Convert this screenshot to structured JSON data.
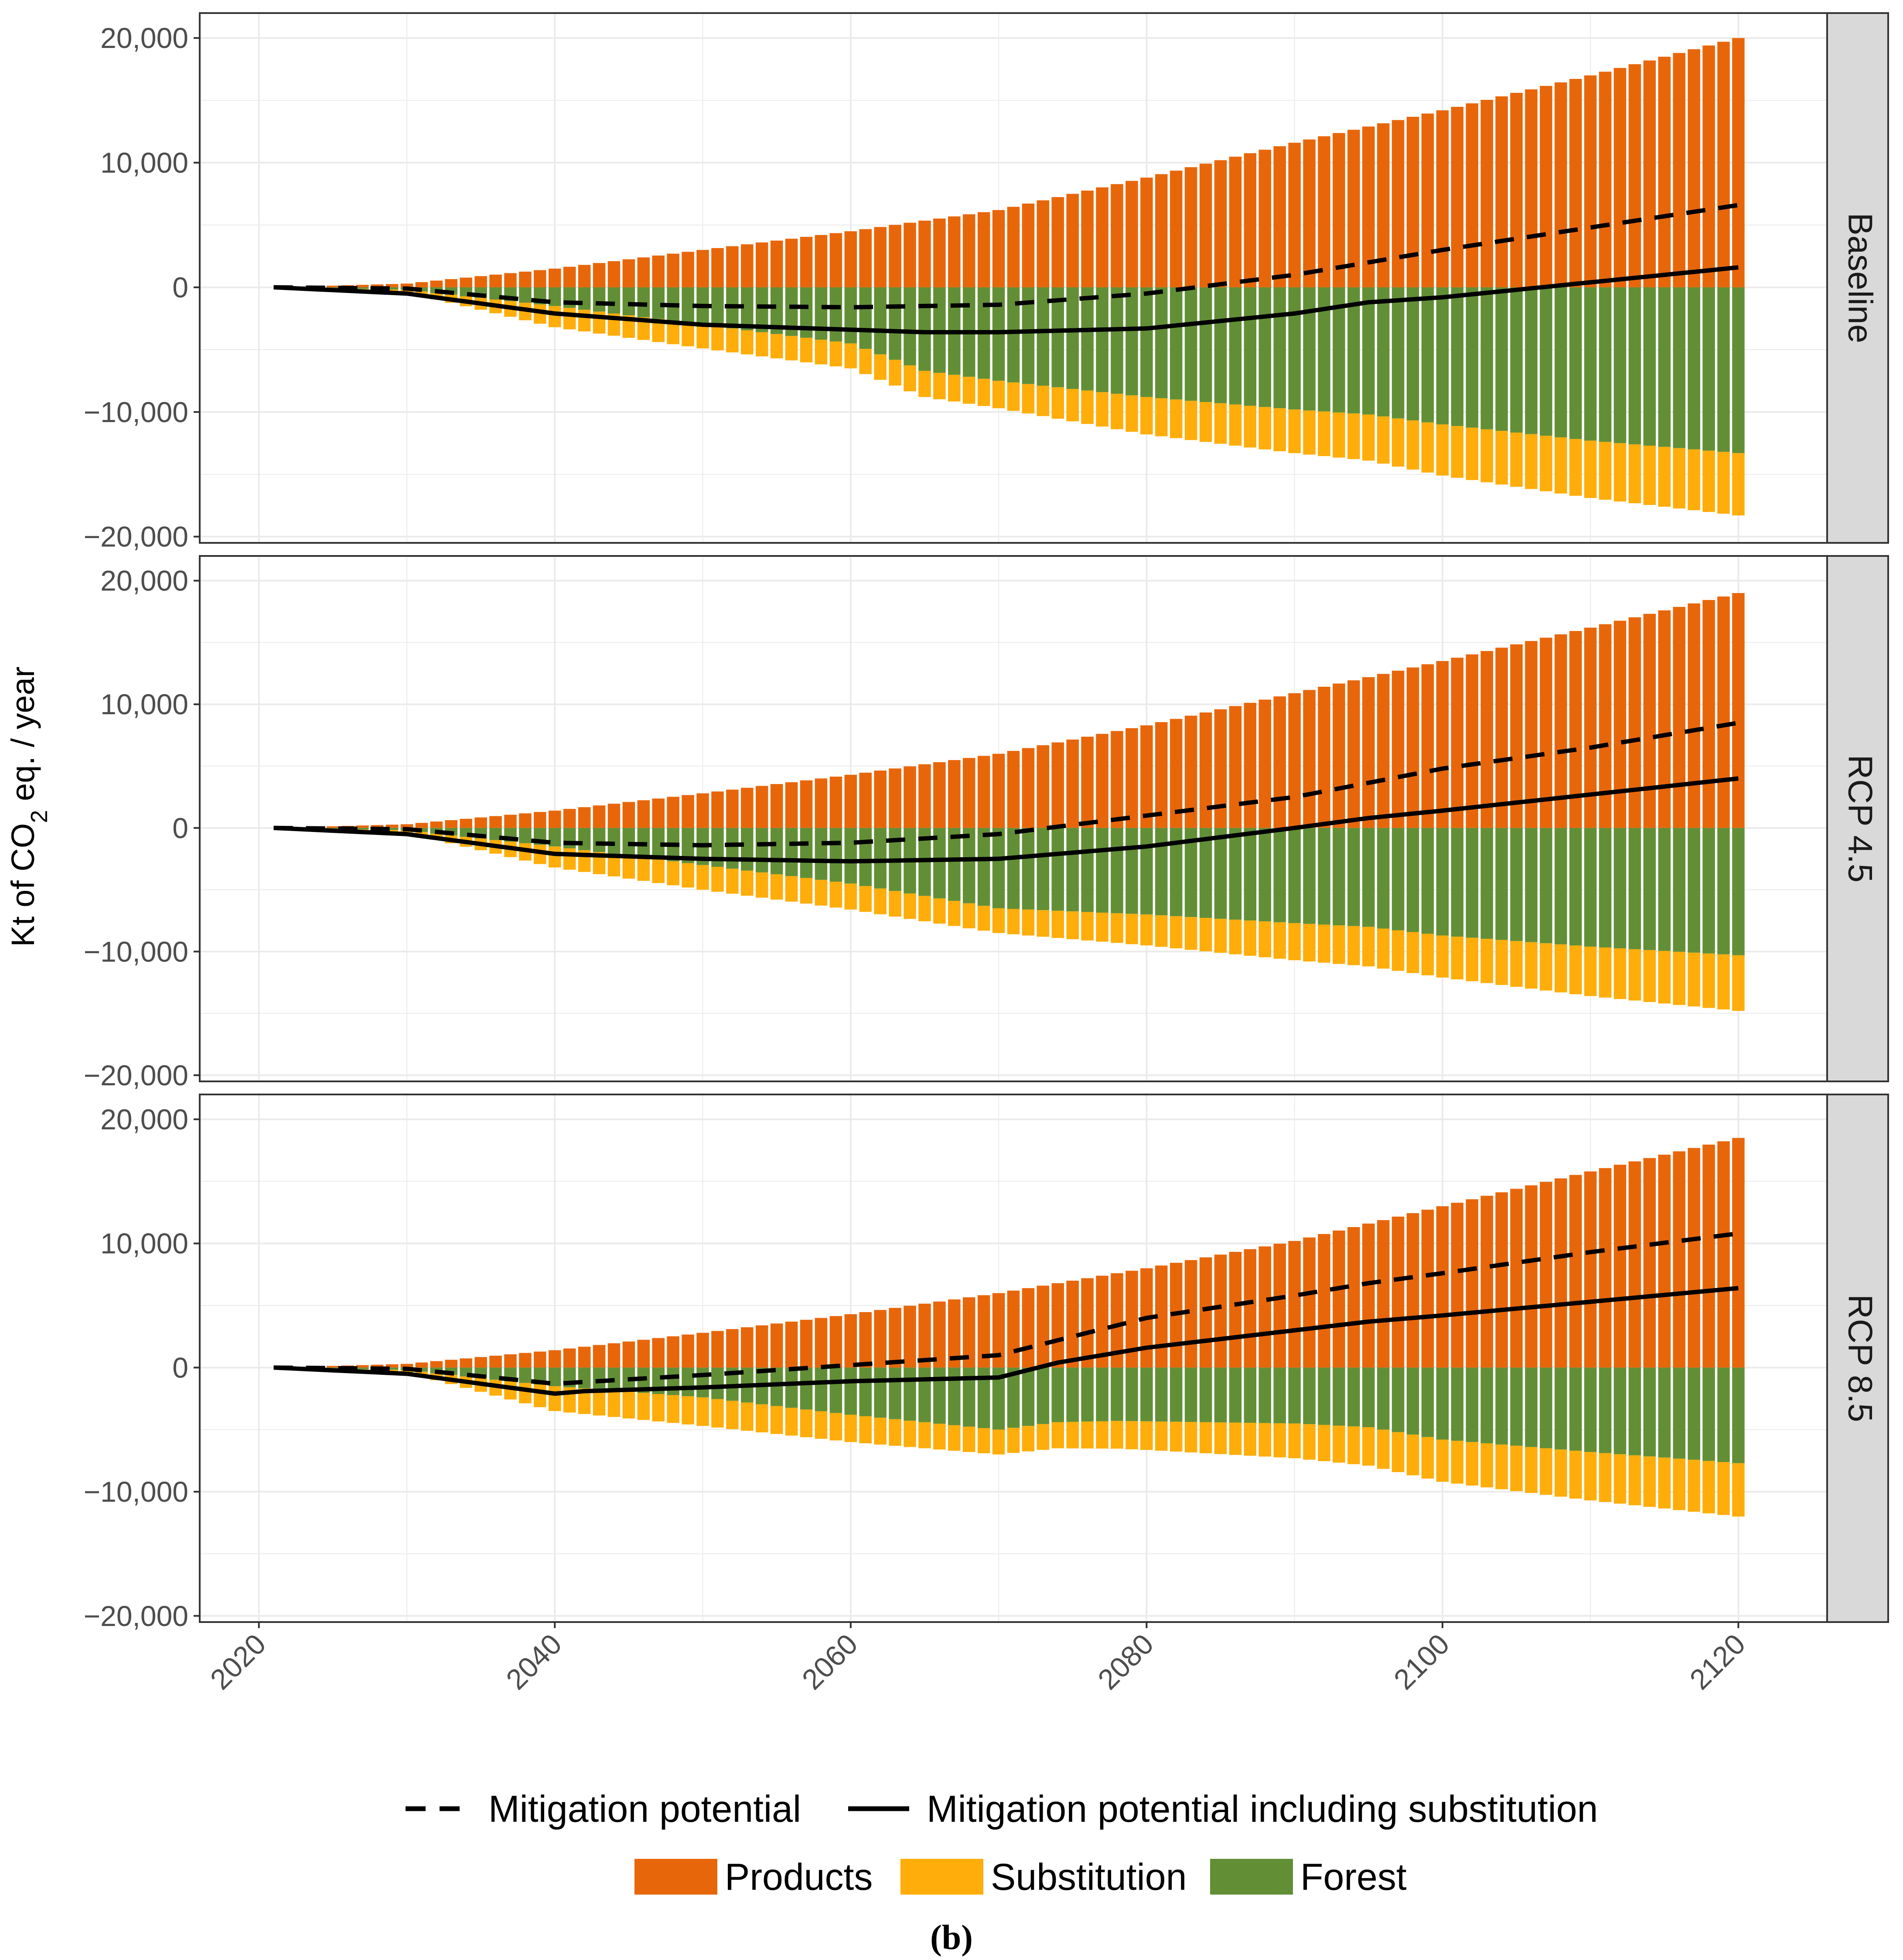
{
  "chart_data": {
    "type": "bar",
    "stacked": true,
    "facet_by": "scenario",
    "ylabel": {
      "prefix": "Kt of  CO",
      "subscript": "2",
      "suffix": " eq. / year"
    },
    "xlim": [
      2016,
      2126
    ],
    "ylim": [
      -20500,
      22000
    ],
    "x_ticks": [
      2020,
      2040,
      2060,
      2080,
      2100,
      2120
    ],
    "x_tick_labels": [
      "2020",
      "2040",
      "2060",
      "2080",
      "2100",
      "2120"
    ],
    "y_ticks": [
      20000,
      10000,
      0,
      -10000,
      -20000
    ],
    "y_tick_labels": [
      "20,000",
      "10,000",
      "0",
      "−10,000",
      "−20,000"
    ],
    "years": {
      "start": 2021,
      "end": 2120
    },
    "colors": {
      "Products": "#E8660A",
      "Substitution": "#FFAD0A",
      "Forest": "#628F36",
      "line": "#000000",
      "grid": "#ebebeb",
      "strip": "#d9d9d9"
    },
    "series_names": [
      "Products",
      "Substitution",
      "Forest"
    ],
    "line_names": [
      "Mitigation potential",
      "Mitigation potential including substitution"
    ],
    "panels": [
      {
        "label": "Baseline",
        "products": [
          [
            2021,
            0
          ],
          [
            2030,
            300
          ],
          [
            2040,
            1500
          ],
          [
            2050,
            3000
          ],
          [
            2060,
            4500
          ],
          [
            2070,
            6200
          ],
          [
            2080,
            8800
          ],
          [
            2090,
            11600
          ],
          [
            2100,
            14200
          ],
          [
            2110,
            17000
          ],
          [
            2120,
            20000
          ]
        ],
        "forest": [
          [
            2021,
            0
          ],
          [
            2030,
            -200
          ],
          [
            2040,
            -1500
          ],
          [
            2050,
            -3000
          ],
          [
            2060,
            -4500
          ],
          [
            2065,
            -6700
          ],
          [
            2070,
            -7500
          ],
          [
            2080,
            -8800
          ],
          [
            2090,
            -9800
          ],
          [
            2095,
            -10200
          ],
          [
            2100,
            -11000
          ],
          [
            2110,
            -12300
          ],
          [
            2120,
            -13300
          ]
        ],
        "substitution": [
          [
            2021,
            0
          ],
          [
            2030,
            -200
          ],
          [
            2040,
            -1700
          ],
          [
            2050,
            -1900
          ],
          [
            2060,
            -2000
          ],
          [
            2070,
            -2200
          ],
          [
            2080,
            -3000
          ],
          [
            2090,
            -3500
          ],
          [
            2095,
            -3700
          ],
          [
            2100,
            -4100
          ],
          [
            2110,
            -4600
          ],
          [
            2120,
            -5000
          ]
        ],
        "mitigation": [
          [
            2021,
            0
          ],
          [
            2030,
            -100
          ],
          [
            2040,
            -1200
          ],
          [
            2050,
            -1500
          ],
          [
            2060,
            -1600
          ],
          [
            2070,
            -1400
          ],
          [
            2080,
            -500
          ],
          [
            2090,
            1000
          ],
          [
            2100,
            3000
          ],
          [
            2110,
            4800
          ],
          [
            2120,
            6600
          ]
        ],
        "mitigation_sub": [
          [
            2021,
            0
          ],
          [
            2030,
            -500
          ],
          [
            2040,
            -2100
          ],
          [
            2050,
            -3000
          ],
          [
            2060,
            -3400
          ],
          [
            2065,
            -3600
          ],
          [
            2070,
            -3600
          ],
          [
            2080,
            -3300
          ],
          [
            2090,
            -2100
          ],
          [
            2095,
            -1200
          ],
          [
            2100,
            -800
          ],
          [
            2110,
            400
          ],
          [
            2120,
            1600
          ]
        ]
      },
      {
        "label": "RCP 4.5",
        "products": [
          [
            2021,
            0
          ],
          [
            2030,
            300
          ],
          [
            2040,
            1400
          ],
          [
            2050,
            2800
          ],
          [
            2060,
            4300
          ],
          [
            2070,
            6000
          ],
          [
            2080,
            8300
          ],
          [
            2090,
            10900
          ],
          [
            2100,
            13500
          ],
          [
            2110,
            16200
          ],
          [
            2120,
            19000
          ]
        ],
        "forest": [
          [
            2021,
            0
          ],
          [
            2030,
            -200
          ],
          [
            2040,
            -1500
          ],
          [
            2050,
            -3000
          ],
          [
            2060,
            -4500
          ],
          [
            2065,
            -5500
          ],
          [
            2070,
            -6500
          ],
          [
            2080,
            -7000
          ],
          [
            2090,
            -7700
          ],
          [
            2095,
            -8000
          ],
          [
            2100,
            -8700
          ],
          [
            2110,
            -9600
          ],
          [
            2120,
            -10300
          ]
        ],
        "substitution": [
          [
            2021,
            0
          ],
          [
            2030,
            -200
          ],
          [
            2040,
            -1700
          ],
          [
            2050,
            -2000
          ],
          [
            2060,
            -2100
          ],
          [
            2070,
            -2000
          ],
          [
            2080,
            -2500
          ],
          [
            2090,
            -3000
          ],
          [
            2095,
            -3200
          ],
          [
            2100,
            -3400
          ],
          [
            2110,
            -4000
          ],
          [
            2120,
            -4500
          ]
        ],
        "mitigation": [
          [
            2021,
            0
          ],
          [
            2030,
            -100
          ],
          [
            2040,
            -1200
          ],
          [
            2050,
            -1400
          ],
          [
            2060,
            -1200
          ],
          [
            2070,
            -500
          ],
          [
            2080,
            1000
          ],
          [
            2090,
            2500
          ],
          [
            2100,
            4800
          ],
          [
            2110,
            6500
          ],
          [
            2120,
            8500
          ]
        ],
        "mitigation_sub": [
          [
            2021,
            0
          ],
          [
            2030,
            -500
          ],
          [
            2040,
            -2100
          ],
          [
            2050,
            -2500
          ],
          [
            2060,
            -2700
          ],
          [
            2070,
            -2500
          ],
          [
            2080,
            -1500
          ],
          [
            2090,
            0
          ],
          [
            2095,
            800
          ],
          [
            2100,
            1400
          ],
          [
            2110,
            2700
          ],
          [
            2120,
            4000
          ]
        ]
      },
      {
        "label": "RCP 8.5",
        "products": [
          [
            2021,
            0
          ],
          [
            2030,
            300
          ],
          [
            2040,
            1400
          ],
          [
            2050,
            2800
          ],
          [
            2060,
            4300
          ],
          [
            2070,
            6000
          ],
          [
            2080,
            8000
          ],
          [
            2090,
            10200
          ],
          [
            2100,
            13000
          ],
          [
            2110,
            15800
          ],
          [
            2120,
            18500
          ]
        ],
        "forest": [
          [
            2021,
            0
          ],
          [
            2030,
            -200
          ],
          [
            2040,
            -1500
          ],
          [
            2050,
            -2400
          ],
          [
            2060,
            -3800
          ],
          [
            2070,
            -5000
          ],
          [
            2074,
            -4400
          ],
          [
            2078,
            -4300
          ],
          [
            2090,
            -4500
          ],
          [
            2095,
            -4800
          ],
          [
            2100,
            -5800
          ],
          [
            2110,
            -6800
          ],
          [
            2120,
            -7700
          ]
        ],
        "substitution": [
          [
            2021,
            0
          ],
          [
            2030,
            -200
          ],
          [
            2040,
            -2000
          ],
          [
            2050,
            -2300
          ],
          [
            2060,
            -2200
          ],
          [
            2070,
            -2000
          ],
          [
            2074,
            -2100
          ],
          [
            2080,
            -2300
          ],
          [
            2090,
            -2800
          ],
          [
            2100,
            -3400
          ],
          [
            2110,
            -3900
          ],
          [
            2120,
            -4300
          ]
        ],
        "mitigation": [
          [
            2021,
            0
          ],
          [
            2030,
            -100
          ],
          [
            2040,
            -1300
          ],
          [
            2050,
            -600
          ],
          [
            2060,
            200
          ],
          [
            2070,
            1000
          ],
          [
            2080,
            4000
          ],
          [
            2090,
            5800
          ],
          [
            2095,
            6800
          ],
          [
            2100,
            7600
          ],
          [
            2110,
            9300
          ],
          [
            2120,
            10800
          ]
        ],
        "mitigation_sub": [
          [
            2021,
            0
          ],
          [
            2030,
            -500
          ],
          [
            2040,
            -2100
          ],
          [
            2042,
            -1900
          ],
          [
            2050,
            -1600
          ],
          [
            2060,
            -1100
          ],
          [
            2070,
            -800
          ],
          [
            2074,
            400
          ],
          [
            2080,
            1600
          ],
          [
            2090,
            3000
          ],
          [
            2095,
            3700
          ],
          [
            2100,
            4200
          ],
          [
            2110,
            5300
          ],
          [
            2120,
            6400
          ]
        ]
      }
    ]
  },
  "legend": {
    "lines": [
      "Mitigation potential",
      "Mitigation potential including substitution"
    ],
    "fills": [
      "Products",
      "Substitution",
      "Forest"
    ]
  },
  "caption": "(b)"
}
